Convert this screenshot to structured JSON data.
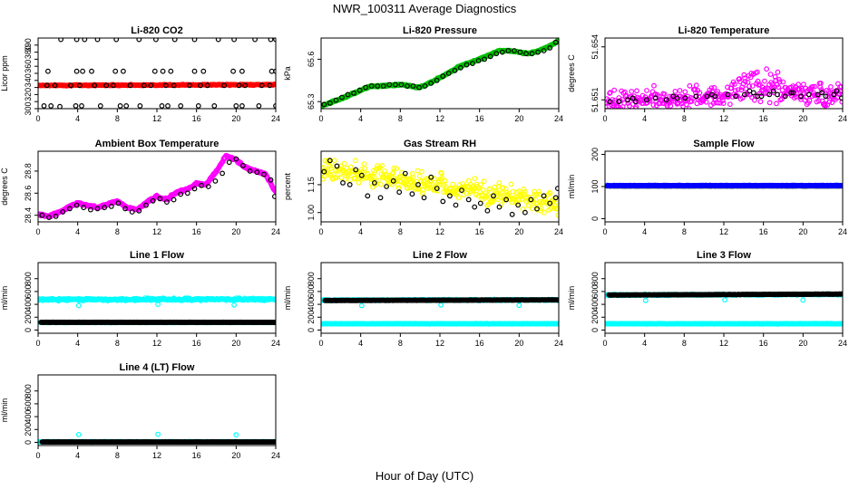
{
  "title": "NWR_100311  Average Diagnostics",
  "xlabel": "Hour of Day (UTC)",
  "chart_data": [
    {
      "type": "scatter",
      "title": "Li-820 CO2",
      "ylabel": "Licor ppm",
      "xlim": [
        0,
        24
      ],
      "ylim": [
        300,
        400
      ],
      "xticks": [
        0,
        4,
        8,
        12,
        16,
        20,
        24
      ],
      "yticks": [
        300,
        310,
        320,
        330,
        340,
        350,
        360,
        370,
        380,
        390
      ],
      "yticklabels": [
        "300",
        "",
        "320",
        "",
        "340",
        "",
        "360",
        "",
        "380",
        "390"
      ],
      "series": [
        {
          "color": "#ff0000",
          "x_range": [
            0,
            24
          ],
          "y_start": 333,
          "y_end": 334,
          "noise": 1
        },
        {
          "color": "#000000",
          "x": [
            0.6,
            1.3,
            2.2,
            3.8,
            4.4,
            6.3,
            8.3,
            8.9,
            10.3,
            12.5,
            13.1,
            14.4,
            16.2,
            17.8,
            20.0,
            20.6,
            22.3,
            24.0,
            0.9,
            1.7,
            3.3,
            4.2,
            5.7,
            6.9,
            7.6,
            9.3,
            10.7,
            11.4,
            12.9,
            13.7,
            15.3,
            16.4,
            17.1,
            18.8,
            20.3,
            20.9,
            22.6,
            23.4,
            1.0,
            3.9,
            4.5,
            5.4,
            7.8,
            8.6,
            11.8,
            12.6,
            13.4,
            15.8,
            16.7,
            19.7,
            20.6,
            23.6,
            24.0,
            2.3,
            3.9,
            4.7,
            6.0,
            7.9,
            10.2,
            11.9,
            13.8,
            15.8,
            18.2,
            19.8,
            21.9,
            23.5,
            24.0
          ],
          "y": [
            304,
            304,
            303,
            304,
            304,
            304,
            304,
            304,
            304,
            304,
            304,
            304,
            304,
            304,
            304,
            304,
            304,
            304,
            333,
            333,
            333,
            333,
            333,
            333,
            333,
            333,
            333,
            333,
            333,
            333,
            333,
            333,
            333,
            333,
            333,
            333,
            333,
            333,
            353,
            353,
            353,
            353,
            353,
            353,
            353,
            353,
            353,
            353,
            353,
            353,
            353,
            353,
            353,
            398,
            398,
            398,
            398,
            398,
            398,
            398,
            398,
            398,
            398,
            398,
            398,
            398,
            398
          ]
        }
      ]
    },
    {
      "type": "scatter",
      "title": "Li-820 Pressure",
      "ylabel": "kPa",
      "xlim": [
        0,
        24
      ],
      "ylim": [
        65.25,
        65.75
      ],
      "xticks": [
        0,
        4,
        8,
        12,
        16,
        20,
        24
      ],
      "yticks": [
        65.3,
        65.6
      ],
      "yticklabels": [
        "65.3",
        "65.6"
      ],
      "series": [
        {
          "color": "#00c000",
          "curve_x": [
            0,
            2,
            4,
            5,
            6,
            8,
            9,
            10,
            12,
            14,
            16,
            18,
            19,
            20,
            21,
            22,
            23,
            24
          ],
          "curve_y": [
            65.27,
            65.32,
            65.38,
            65.41,
            65.41,
            65.42,
            65.41,
            65.4,
            65.47,
            65.55,
            65.6,
            65.66,
            65.66,
            65.65,
            65.64,
            65.66,
            65.69,
            65.73
          ],
          "noise": 0.008
        },
        {
          "color": "#000000",
          "x": [
            0.3,
            0.9,
            1.5,
            2.1,
            2.7,
            3.3,
            3.9,
            4.5,
            5.1,
            5.7,
            6.3,
            6.9,
            7.5,
            8.1,
            8.7,
            9.3,
            9.9,
            10.5,
            11.1,
            11.7,
            12.3,
            12.9,
            13.5,
            14.1,
            14.7,
            15.3,
            15.9,
            16.5,
            17.1,
            17.7,
            18.3,
            18.9,
            19.5,
            20.1,
            20.7,
            21.3,
            21.9,
            22.5,
            23.1,
            23.7
          ],
          "y": [
            65.28,
            65.29,
            65.31,
            65.33,
            65.35,
            65.36,
            65.38,
            65.4,
            65.41,
            65.41,
            65.41,
            65.42,
            65.42,
            65.42,
            65.41,
            65.41,
            65.4,
            65.41,
            65.43,
            65.45,
            65.48,
            65.5,
            65.52,
            65.54,
            65.56,
            65.57,
            65.59,
            65.6,
            65.62,
            65.64,
            65.65,
            65.66,
            65.66,
            65.65,
            65.64,
            65.64,
            65.65,
            65.66,
            65.68,
            65.72
          ]
        }
      ]
    },
    {
      "type": "scatter",
      "title": "Li-820 Temperature",
      "ylabel": "degrees C",
      "xlim": [
        0,
        24
      ],
      "ylim": [
        51.6505,
        51.6545
      ],
      "xticks": [
        0,
        4,
        8,
        12,
        16,
        20,
        24
      ],
      "yticks": [
        51.651,
        51.654
      ],
      "yticklabels": [
        "51.651",
        "51.654"
      ],
      "series": [
        {
          "color": "#ff00ff",
          "x_range": [
            0,
            24
          ],
          "y_start": 51.6509,
          "y_end": 51.6514,
          "noise": 0.0009,
          "bump_x": 15.5,
          "bump_y": 0.0012,
          "bump_width": 3
        },
        {
          "color": "#000000",
          "x": [
            0.5,
            1.4,
            2.3,
            3.1,
            4.2,
            5.1,
            6.2,
            7.3,
            8.1,
            9.2,
            10.3,
            11.1,
            12.4,
            13.2,
            14.1,
            15.0,
            15.8,
            16.6,
            17.4,
            18.2,
            19.0,
            19.8,
            20.6,
            21.5,
            22.3,
            23.1,
            23.9,
            2.8,
            6.9,
            10.8,
            14.6,
            15.4,
            17.0,
            18.8,
            21.9,
            23.4
          ],
          "y": [
            51.6509,
            51.6509,
            51.651,
            51.6509,
            51.651,
            51.6511,
            51.651,
            51.6511,
            51.6511,
            51.6512,
            51.6512,
            51.6512,
            51.6513,
            51.6512,
            51.6513,
            51.6514,
            51.6512,
            51.6513,
            51.6513,
            51.6512,
            51.6514,
            51.6512,
            51.6513,
            51.6513,
            51.6512,
            51.6513,
            51.6511,
            51.6511,
            51.6512,
            51.6513,
            51.6515,
            51.6512,
            51.6515,
            51.6514,
            51.6514,
            51.6515
          ]
        }
      ]
    },
    {
      "type": "scatter",
      "title": "Ambient Box Temperature",
      "ylabel": "degrees C",
      "xlim": [
        0,
        24
      ],
      "ylim": [
        28.34,
        28.98
      ],
      "xticks": [
        0,
        4,
        8,
        12,
        16,
        20,
        24
      ],
      "yticks": [
        28.4,
        28.6,
        28.8
      ],
      "yticklabels": [
        "28.4",
        "28.6",
        "28.8"
      ],
      "series": [
        {
          "color": "#ff00ff",
          "curve_x": [
            0,
            1,
            2,
            3,
            4,
            5,
            6,
            7,
            8,
            9,
            10,
            11,
            12,
            13,
            14,
            15,
            16,
            17,
            18,
            19,
            20,
            21,
            22,
            23,
            24
          ],
          "curve_y": [
            28.41,
            28.39,
            28.42,
            28.47,
            28.51,
            28.49,
            28.47,
            28.5,
            28.53,
            28.47,
            28.45,
            28.52,
            28.57,
            28.54,
            28.61,
            28.63,
            28.69,
            28.68,
            28.8,
            28.94,
            28.9,
            28.83,
            28.8,
            28.77,
            28.61
          ],
          "noise": 0.015
        },
        {
          "color": "#000000",
          "x": [
            0.4,
            1.1,
            1.8,
            2.5,
            3.2,
            3.9,
            4.6,
            5.3,
            6.0,
            6.7,
            7.4,
            8.1,
            8.8,
            9.5,
            10.2,
            10.9,
            11.6,
            12.3,
            13.0,
            13.7,
            14.4,
            15.1,
            15.8,
            16.5,
            17.2,
            17.9,
            18.6,
            19.3,
            20.0,
            20.7,
            21.4,
            22.1,
            22.8,
            23.5,
            23.9
          ],
          "y": [
            28.4,
            28.38,
            28.39,
            28.43,
            28.46,
            28.49,
            28.47,
            28.45,
            28.46,
            28.47,
            28.48,
            28.51,
            28.46,
            28.43,
            28.44,
            28.49,
            28.53,
            28.55,
            28.52,
            28.54,
            28.59,
            28.6,
            28.64,
            28.67,
            28.66,
            28.71,
            28.78,
            28.88,
            28.91,
            28.85,
            28.8,
            28.79,
            28.77,
            28.72,
            28.57
          ]
        }
      ]
    },
    {
      "type": "scatter",
      "title": "Gas Stream RH",
      "ylabel": "percent",
      "xlim": [
        0,
        24
      ],
      "ylim": [
        0.95,
        1.33
      ],
      "xticks": [
        0,
        4,
        8,
        12,
        16,
        20,
        24
      ],
      "yticks": [
        1.0,
        1.15
      ],
      "yticklabels": [
        "1.00",
        "1.15"
      ],
      "series": [
        {
          "color": "#ffff00",
          "x_range": [
            0,
            24
          ],
          "y_start": 1.24,
          "y_end": 1.05,
          "noise": 0.085
        },
        {
          "color": "#000000",
          "x": [
            0.3,
            0.9,
            1.6,
            2.2,
            2.9,
            3.5,
            4.1,
            4.7,
            5.4,
            6.0,
            6.6,
            7.3,
            7.9,
            8.5,
            9.2,
            9.8,
            10.4,
            11.1,
            11.7,
            12.3,
            13.0,
            13.6,
            14.2,
            14.9,
            15.5,
            16.1,
            16.8,
            17.4,
            18.0,
            18.7,
            19.3,
            19.9,
            20.6,
            21.2,
            21.8,
            22.5,
            23.1,
            23.7,
            23.9
          ],
          "y": [
            1.22,
            1.28,
            1.25,
            1.16,
            1.15,
            1.23,
            1.2,
            1.09,
            1.16,
            1.08,
            1.14,
            1.17,
            1.11,
            1.21,
            1.1,
            1.15,
            1.08,
            1.19,
            1.13,
            1.06,
            1.09,
            1.04,
            1.12,
            1.07,
            1.03,
            1.05,
            1.01,
            1.09,
            1.03,
            1.07,
            0.99,
            1.04,
            1.0,
            1.07,
            1.02,
            1.09,
            1.05,
            1.08,
            1.13
          ]
        }
      ]
    },
    {
      "type": "scatter",
      "title": "Sample Flow",
      "ylabel": "ml/min",
      "xlim": [
        0,
        24
      ],
      "ylim": [
        -10,
        210
      ],
      "xticks": [
        0,
        4,
        8,
        12,
        16,
        20,
        24
      ],
      "yticks": [
        0,
        100,
        200
      ],
      "yticklabels": [
        "0",
        "100",
        "200"
      ],
      "series": [
        {
          "color": "#000000",
          "x_range": [
            0.2,
            23.9
          ],
          "y_start": 102,
          "y_end": 102,
          "noise": 0.5
        },
        {
          "color": "#0000ff",
          "x_range": [
            0.2,
            23.9
          ],
          "y_start": 103,
          "y_end": 103,
          "noise": 1.5
        }
      ]
    },
    {
      "type": "scatter",
      "title": "Line 1 Flow",
      "ylabel": "ml/min",
      "xlim": [
        0,
        24
      ],
      "ylim": [
        -50,
        1050
      ],
      "xticks": [
        0,
        4,
        8,
        12,
        16,
        20,
        24
      ],
      "yticks": [
        0,
        200,
        400,
        600,
        800
      ],
      "yticklabels": [
        "0",
        "200",
        "400",
        "600",
        "800"
      ],
      "series": [
        {
          "color": "#00ffff",
          "x_range": [
            0,
            24
          ],
          "y_start": 475,
          "y_end": 480,
          "noise": 25
        },
        {
          "color": "#00ffff",
          "x": [
            4.1,
            12.1,
            19.8
          ],
          "y": [
            380,
            400,
            390
          ]
        },
        {
          "color": "#00ffff",
          "x_range": [
            0.2,
            23.9
          ],
          "y_start": 118,
          "y_end": 118,
          "noise": 5
        },
        {
          "color": "#000000",
          "x_range": [
            0.3,
            23.9
          ],
          "y_start": 120,
          "y_end": 120,
          "noise": 3
        }
      ]
    },
    {
      "type": "scatter",
      "title": "Line 2 Flow",
      "ylabel": "ml/min",
      "xlim": [
        0,
        24
      ],
      "ylim": [
        -50,
        1050
      ],
      "xticks": [
        0,
        4,
        8,
        12,
        16,
        20,
        24
      ],
      "yticks": [
        0,
        200,
        400,
        600,
        800
      ],
      "yticklabels": [
        "0",
        "200",
        "400",
        "600",
        "800"
      ],
      "series": [
        {
          "color": "#00ffff",
          "x_range": [
            0,
            24
          ],
          "y_start": 465,
          "y_end": 470,
          "noise": 12
        },
        {
          "color": "#00ffff",
          "x": [
            4.1,
            12.1,
            20.0
          ],
          "y": [
            380,
            390,
            385
          ]
        },
        {
          "color": "#00ffff",
          "x_range": [
            0,
            24
          ],
          "y_start": 98,
          "y_end": 98,
          "noise": 5
        },
        {
          "color": "#000000",
          "x_range": [
            0.4,
            23.9
          ],
          "y_start": 460,
          "y_end": 470,
          "noise": 4
        }
      ]
    },
    {
      "type": "scatter",
      "title": "Line 3 Flow",
      "ylabel": "ml/min",
      "xlim": [
        0,
        24
      ],
      "ylim": [
        -50,
        1050
      ],
      "xticks": [
        0,
        4,
        8,
        12,
        16,
        20,
        24
      ],
      "yticks": [
        0,
        200,
        400,
        600,
        800
      ],
      "yticklabels": [
        "0",
        "200",
        "400",
        "600",
        "800"
      ],
      "series": [
        {
          "color": "#00ffff",
          "x_range": [
            0,
            24
          ],
          "y_start": 545,
          "y_end": 555,
          "noise": 14
        },
        {
          "color": "#00ffff",
          "x": [
            4.1,
            12.1,
            20.0
          ],
          "y": [
            460,
            470,
            465
          ]
        },
        {
          "color": "#00ffff",
          "x_range": [
            0,
            24
          ],
          "y_start": 98,
          "y_end": 98,
          "noise": 5
        },
        {
          "color": "#000000",
          "x_range": [
            0.4,
            23.9
          ],
          "y_start": 545,
          "y_end": 560,
          "noise": 4
        }
      ]
    },
    {
      "type": "scatter",
      "title": "Line 4 (LT) Flow",
      "ylabel": "ml/min",
      "xlim": [
        0,
        24
      ],
      "ylim": [
        -50,
        1050
      ],
      "xticks": [
        0,
        4,
        8,
        12,
        16,
        20,
        24
      ],
      "yticks": [
        0,
        200,
        400,
        600,
        800
      ],
      "yticklabels": [
        "0",
        "200",
        "400",
        "600",
        "800"
      ],
      "series": [
        {
          "color": "#00ffff",
          "x_range": [
            0,
            24
          ],
          "y_start": 8,
          "y_end": 8,
          "noise": 6
        },
        {
          "color": "#00ffff",
          "x": [
            4.1,
            12.1,
            20.0
          ],
          "y": [
            120,
            125,
            118
          ]
        },
        {
          "color": "#000000",
          "x_range": [
            0.4,
            23.9
          ],
          "y_start": 6,
          "y_end": 6,
          "noise": 2
        }
      ]
    }
  ]
}
